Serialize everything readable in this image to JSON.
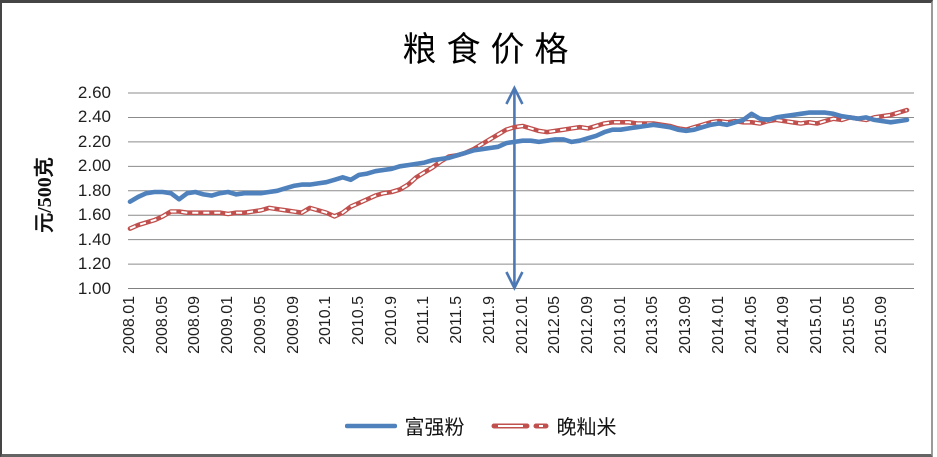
{
  "title": "粮食价格",
  "y_axis_title": "元/500克",
  "colors": {
    "flour_line": "#4F81BD",
    "rice_line": "#C0504D",
    "rice_dash_fill": "#FFFFFF",
    "gridline": "#8C8C8C",
    "axis_line": "#808080",
    "arrow": "#4C79B5",
    "tick_text": "#1F1F1F",
    "frame_border": "#454545"
  },
  "legend": [
    {
      "name": "富强粉",
      "style": "solid"
    },
    {
      "name": "晚籼米",
      "style": "dashed"
    }
  ],
  "chart_data": {
    "type": "line",
    "title": "粮食价格",
    "xlabel": "",
    "ylabel": "元/500克",
    "ylim": [
      1.0,
      2.6
    ],
    "ytick_step": 0.2,
    "yticks": [
      "2.60",
      "2.40",
      "2.20",
      "2.00",
      "1.80",
      "1.60",
      "1.40",
      "1.20",
      "1.00"
    ],
    "xticks": [
      "2008.01",
      "2008.05",
      "2008.09",
      "2009.01",
      "2009.05",
      "2009.09",
      "2010.1",
      "2010.5",
      "2010.9",
      "2011.1",
      "2011.5",
      "2011.9",
      "2012.01",
      "2012.05",
      "2012.09",
      "2013.01",
      "2013.05",
      "2013.09",
      "2014.01",
      "2014.05",
      "2014.09",
      "2015.01",
      "2015.05",
      "2015.09"
    ],
    "xtick_month_interval": 4,
    "x_monthly_range": [
      "2008.01",
      "2015.12"
    ],
    "grid": true,
    "legend_position": "bottom",
    "annotation": {
      "type": "vertical-double-arrow",
      "at_month": "2011.12",
      "month_index": 47,
      "from_value": 1.0,
      "to_value": 2.6
    },
    "series": [
      {
        "name": "富强粉",
        "style": "solid",
        "color": "#4F81BD",
        "values": [
          1.71,
          1.75,
          1.78,
          1.79,
          1.79,
          1.78,
          1.73,
          1.78,
          1.79,
          1.77,
          1.76,
          1.78,
          1.79,
          1.77,
          1.78,
          1.78,
          1.78,
          1.79,
          1.8,
          1.82,
          1.84,
          1.85,
          1.85,
          1.86,
          1.87,
          1.89,
          1.91,
          1.89,
          1.93,
          1.94,
          1.96,
          1.97,
          1.98,
          2.0,
          2.01,
          2.02,
          2.03,
          2.05,
          2.06,
          2.07,
          2.09,
          2.11,
          2.13,
          2.14,
          2.15,
          2.16,
          2.19,
          2.2,
          2.21,
          2.21,
          2.2,
          2.21,
          2.22,
          2.22,
          2.2,
          2.21,
          2.23,
          2.25,
          2.28,
          2.3,
          2.3,
          2.31,
          2.32,
          2.33,
          2.34,
          2.33,
          2.32,
          2.3,
          2.29,
          2.3,
          2.32,
          2.34,
          2.35,
          2.34,
          2.36,
          2.38,
          2.43,
          2.39,
          2.38,
          2.4,
          2.41,
          2.42,
          2.43,
          2.44,
          2.44,
          2.44,
          2.43,
          2.41,
          2.4,
          2.39,
          2.4,
          2.38,
          2.37,
          2.36,
          2.37,
          2.38
        ]
      },
      {
        "name": "晚籼米",
        "style": "dashed",
        "color": "#C0504D",
        "values": [
          1.49,
          1.52,
          1.54,
          1.56,
          1.59,
          1.63,
          1.63,
          1.62,
          1.62,
          1.62,
          1.62,
          1.62,
          1.61,
          1.62,
          1.62,
          1.63,
          1.64,
          1.66,
          1.65,
          1.64,
          1.63,
          1.62,
          1.66,
          1.64,
          1.62,
          1.59,
          1.62,
          1.67,
          1.7,
          1.73,
          1.76,
          1.78,
          1.79,
          1.81,
          1.85,
          1.91,
          1.95,
          1.99,
          2.04,
          2.08,
          2.09,
          2.11,
          2.14,
          2.18,
          2.22,
          2.26,
          2.3,
          2.32,
          2.33,
          2.31,
          2.29,
          2.28,
          2.29,
          2.3,
          2.31,
          2.32,
          2.31,
          2.33,
          2.35,
          2.36,
          2.36,
          2.36,
          2.35,
          2.35,
          2.35,
          2.34,
          2.33,
          2.31,
          2.3,
          2.32,
          2.34,
          2.36,
          2.37,
          2.36,
          2.37,
          2.36,
          2.36,
          2.35,
          2.37,
          2.38,
          2.37,
          2.36,
          2.35,
          2.36,
          2.35,
          2.37,
          2.39,
          2.38,
          2.4,
          2.39,
          2.38,
          2.4,
          2.41,
          2.42,
          2.44,
          2.46
        ]
      }
    ]
  }
}
